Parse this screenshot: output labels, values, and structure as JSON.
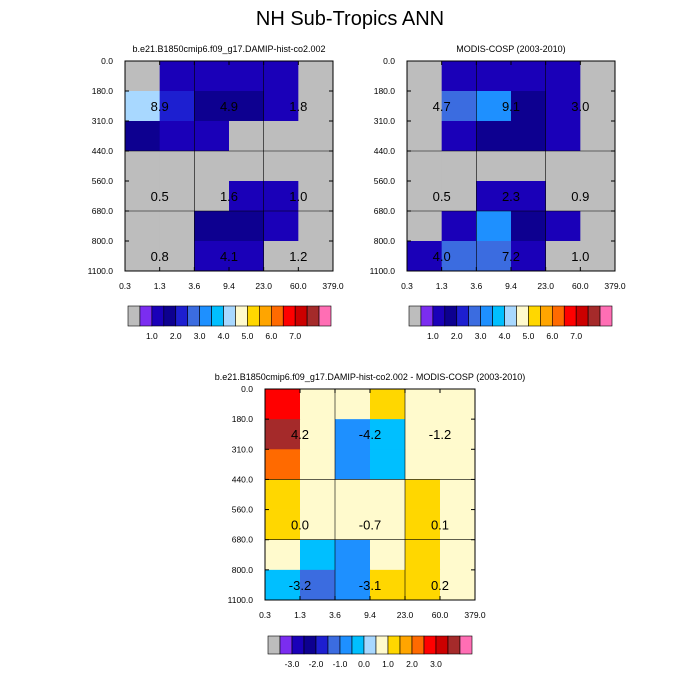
{
  "figure": {
    "title": "NH Sub-Tropics ANN",
    "colors": {
      "background": "#ffffff",
      "missing": "#bdbdbd",
      "grid": "#000000"
    }
  },
  "chart_data": [
    {
      "type": "heatmap",
      "title": "b.e21.B1850cmip6.f09_g17.DAMIP-hist-co2.002",
      "x_edges": [
        "0.3",
        "1.3",
        "3.6",
        "9.4",
        "23.0",
        "60.0",
        "379.0"
      ],
      "y_edges": [
        "0.0",
        "180.0",
        "310.0",
        "440.0",
        "560.0",
        "680.0",
        "800.0",
        "1100.0"
      ],
      "cells": [
        [
          "M",
          0.8,
          0.8,
          0.8,
          0.8,
          "M"
        ],
        [
          3.8,
          1.5,
          1.2,
          1.2,
          0.8,
          "M"
        ],
        [
          1.3,
          0.8,
          0.8,
          "M",
          "M",
          "M"
        ],
        [
          "M",
          "M",
          "M",
          "M",
          "M",
          "M"
        ],
        [
          "M",
          "M",
          "M",
          0.8,
          0.8,
          "M"
        ],
        [
          "M",
          "M",
          1.3,
          1.3,
          0.8,
          "M"
        ],
        [
          "M",
          "M",
          0.8,
          0.8,
          "M",
          "M"
        ]
      ],
      "group_labels": [
        {
          "row": 1.5,
          "col": 1.0,
          "text": "8.9"
        },
        {
          "row": 1.5,
          "col": 3.0,
          "text": "4.9"
        },
        {
          "row": 1.5,
          "col": 5.0,
          "text": "1.8"
        },
        {
          "row": 4.5,
          "col": 1.0,
          "text": "0.5"
        },
        {
          "row": 4.5,
          "col": 3.0,
          "text": "1.6"
        },
        {
          "row": 4.5,
          "col": 5.0,
          "text": "1.0"
        },
        {
          "row": 6.5,
          "col": 1.0,
          "text": "0.8"
        },
        {
          "row": 6.5,
          "col": 3.0,
          "text": "4.1"
        },
        {
          "row": 6.5,
          "col": 5.0,
          "text": "1.2"
        }
      ],
      "colorbar": {
        "levels": [
          0.5,
          1.0,
          1.5,
          2.0,
          2.5,
          3.0,
          3.5,
          4.0,
          4.5,
          5.0,
          5.5,
          6.0,
          6.5,
          7.0
        ],
        "colors": [
          "#bdbdbd",
          "#7b2df0",
          "#1a00b8",
          "#0d0090",
          "#1d1fd0",
          "#3b6ce0",
          "#1e90ff",
          "#00bfff",
          "#a8d8ff",
          "#fffacd",
          "#ffd700",
          "#ffa500",
          "#ff6a00",
          "#ff0000",
          "#cc0000",
          "#a52a2a",
          "#ff6eb4"
        ],
        "tick_labels": [
          "1.0",
          "2.0",
          "3.0",
          "4.0",
          "5.0",
          "6.0",
          "7.0"
        ]
      }
    },
    {
      "type": "heatmap",
      "title": "MODIS-COSP (2003-2010)",
      "x_edges": [
        "0.3",
        "1.3",
        "3.6",
        "9.4",
        "23.0",
        "60.0",
        "379.0"
      ],
      "y_edges": [
        "0.0",
        "180.0",
        "310.0",
        "440.0",
        "560.0",
        "680.0",
        "800.0",
        "1100.0"
      ],
      "cells": [
        [
          "M",
          0.8,
          0.8,
          0.8,
          0.8,
          "M"
        ],
        [
          "M",
          2.3,
          2.8,
          1.2,
          0.8,
          "M"
        ],
        [
          "M",
          0.8,
          1.2,
          1.3,
          0.8,
          "M"
        ],
        [
          "M",
          "M",
          "M",
          "M",
          "M",
          "M"
        ],
        [
          "M",
          "M",
          0.8,
          0.8,
          "M",
          "M"
        ],
        [
          "M",
          0.8,
          2.8,
          1.2,
          0.8,
          "M"
        ],
        [
          0.8,
          2.3,
          2.3,
          0.8,
          "M",
          "M"
        ]
      ],
      "group_labels": [
        {
          "row": 1.5,
          "col": 1.0,
          "text": "4.7"
        },
        {
          "row": 1.5,
          "col": 3.0,
          "text": "9.1"
        },
        {
          "row": 1.5,
          "col": 5.0,
          "text": "3.0"
        },
        {
          "row": 4.5,
          "col": 1.0,
          "text": "0.5"
        },
        {
          "row": 4.5,
          "col": 3.0,
          "text": "2.3"
        },
        {
          "row": 4.5,
          "col": 5.0,
          "text": "0.9"
        },
        {
          "row": 6.5,
          "col": 1.0,
          "text": "4.0"
        },
        {
          "row": 6.5,
          "col": 3.0,
          "text": "7.2"
        },
        {
          "row": 6.5,
          "col": 5.0,
          "text": "1.0"
        }
      ],
      "colorbar": {
        "levels": [
          0.5,
          1.0,
          1.5,
          2.0,
          2.5,
          3.0,
          3.5,
          4.0,
          4.5,
          5.0,
          5.5,
          6.0,
          6.5,
          7.0
        ],
        "colors": [
          "#bdbdbd",
          "#7b2df0",
          "#1a00b8",
          "#0d0090",
          "#1d1fd0",
          "#3b6ce0",
          "#1e90ff",
          "#00bfff",
          "#a8d8ff",
          "#fffacd",
          "#ffd700",
          "#ffa500",
          "#ff6a00",
          "#ff0000",
          "#cc0000",
          "#a52a2a",
          "#ff6eb4"
        ],
        "tick_labels": [
          "1.0",
          "2.0",
          "3.0",
          "4.0",
          "5.0",
          "6.0",
          "7.0"
        ]
      }
    },
    {
      "type": "heatmap",
      "title": "b.e21.B1850cmip6.f09_g17.DAMIP-hist-co2.002 - MODIS-COSP (2003-2010)",
      "x_edges": [
        "0.3",
        "1.3",
        "3.6",
        "9.4",
        "23.0",
        "60.0",
        "379.0"
      ],
      "y_edges": [
        "0.0",
        "180.0",
        "310.0",
        "440.0",
        "560.0",
        "680.0",
        "800.0",
        "1100.0"
      ],
      "cells": [
        [
          2.2,
          0.3,
          0.3,
          0.7,
          0.3,
          0.3
        ],
        [
          3.2,
          0.3,
          -1.2,
          -0.7,
          0.3,
          0.3
        ],
        [
          1.7,
          0.3,
          -1.2,
          -0.7,
          0.3,
          0.3
        ],
        [
          0.7,
          0.3,
          0.3,
          0.3,
          0.7,
          0.3
        ],
        [
          0.7,
          0.3,
          0.3,
          0.3,
          0.7,
          0.3
        ],
        [
          0.3,
          -0.7,
          -1.2,
          0.3,
          0.7,
          0.3
        ],
        [
          -0.7,
          -1.7,
          -1.2,
          0.7,
          0.7,
          0.3
        ]
      ],
      "group_labels": [
        {
          "row": 1.5,
          "col": 1.0,
          "text": "4.2"
        },
        {
          "row": 1.5,
          "col": 3.0,
          "text": "-4.2"
        },
        {
          "row": 1.5,
          "col": 5.0,
          "text": "-1.2"
        },
        {
          "row": 4.5,
          "col": 1.0,
          "text": "0.0"
        },
        {
          "row": 4.5,
          "col": 3.0,
          "text": "-0.7"
        },
        {
          "row": 4.5,
          "col": 5.0,
          "text": "0.1"
        },
        {
          "row": 6.5,
          "col": 1.0,
          "text": "-3.2"
        },
        {
          "row": 6.5,
          "col": 3.0,
          "text": "-3.1"
        },
        {
          "row": 6.5,
          "col": 5.0,
          "text": "0.2"
        }
      ],
      "colorbar": {
        "levels": [
          -3.5,
          -3.0,
          -2.5,
          -2.0,
          -1.5,
          -1.0,
          -0.5,
          0.0,
          0.5,
          1.0,
          1.5,
          2.0,
          2.5,
          3.0
        ],
        "colors": [
          "#bdbdbd",
          "#7b2df0",
          "#1a00b8",
          "#0d0090",
          "#1d1fd0",
          "#3b6ce0",
          "#1e90ff",
          "#00bfff",
          "#a8d8ff",
          "#fffacd",
          "#ffd700",
          "#ffa500",
          "#ff6a00",
          "#ff0000",
          "#cc0000",
          "#a52a2a",
          "#ff6eb4"
        ],
        "tick_labels": [
          "-3.0",
          "-2.0",
          "-1.0",
          "0.0",
          "1.0",
          "2.0",
          "3.0"
        ]
      }
    }
  ]
}
